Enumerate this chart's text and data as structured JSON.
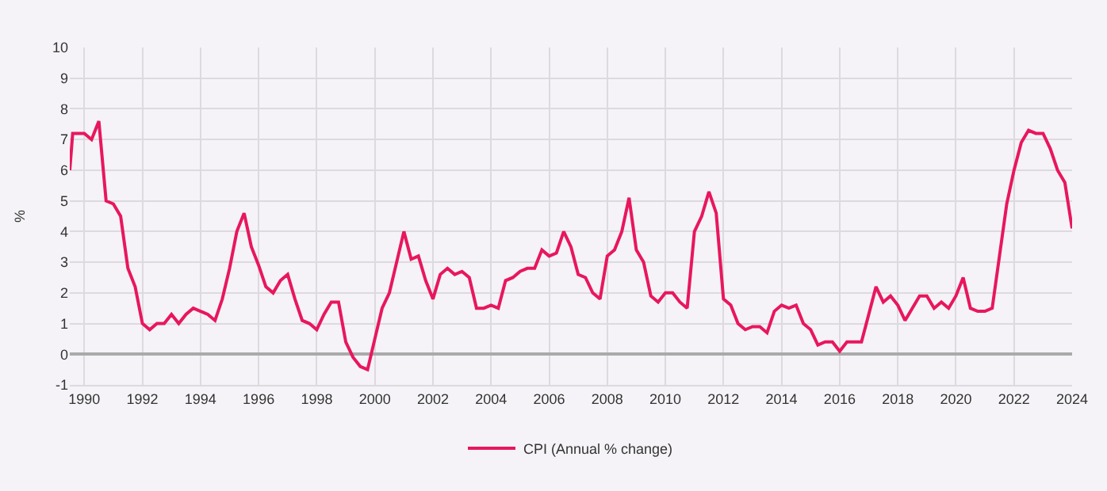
{
  "chart_data": {
    "type": "line",
    "ylabel": "%",
    "x": [
      1989.5,
      1989.6,
      1990.0,
      1990.25,
      1990.5,
      1990.75,
      1991.0,
      1991.25,
      1991.5,
      1991.75,
      1992.0,
      1992.25,
      1992.5,
      1992.75,
      1993.0,
      1993.25,
      1993.5,
      1993.75,
      1994.0,
      1994.25,
      1994.5,
      1994.75,
      1995.0,
      1995.25,
      1995.5,
      1995.75,
      1996.0,
      1996.25,
      1996.5,
      1996.75,
      1997.0,
      1997.25,
      1997.5,
      1997.75,
      1998.0,
      1998.25,
      1998.5,
      1998.75,
      1999.0,
      1999.25,
      1999.5,
      1999.75,
      2000.0,
      2000.25,
      2000.5,
      2000.75,
      2001.0,
      2001.25,
      2001.5,
      2001.75,
      2002.0,
      2002.25,
      2002.5,
      2002.75,
      2003.0,
      2003.25,
      2003.5,
      2003.75,
      2004.0,
      2004.25,
      2004.5,
      2004.75,
      2005.0,
      2005.25,
      2005.5,
      2005.75,
      2006.0,
      2006.25,
      2006.5,
      2006.75,
      2007.0,
      2007.25,
      2007.5,
      2007.75,
      2008.0,
      2008.25,
      2008.5,
      2008.75,
      2009.0,
      2009.25,
      2009.5,
      2009.75,
      2010.0,
      2010.25,
      2010.5,
      2010.75,
      2011.0,
      2011.25,
      2011.5,
      2011.75,
      2012.0,
      2012.25,
      2012.5,
      2012.75,
      2013.0,
      2013.25,
      2013.5,
      2013.75,
      2014.0,
      2014.25,
      2014.5,
      2014.75,
      2015.0,
      2015.25,
      2015.5,
      2015.75,
      2016.0,
      2016.25,
      2016.5,
      2016.75,
      2017.0,
      2017.25,
      2017.5,
      2017.75,
      2018.0,
      2018.25,
      2018.5,
      2018.75,
      2019.0,
      2019.25,
      2019.5,
      2019.75,
      2020.0,
      2020.25,
      2020.5,
      2020.75,
      2021.0,
      2021.25,
      2021.5,
      2021.75,
      2022.0,
      2022.25,
      2022.5,
      2022.75,
      2023.0,
      2023.25,
      2023.5,
      2023.75,
      2024.0
    ],
    "series": [
      {
        "name": "CPI (Annual % change)",
        "color": "#e8175d",
        "values": [
          6.0,
          7.2,
          7.2,
          7.0,
          7.6,
          5.0,
          4.9,
          4.5,
          2.8,
          2.2,
          1.0,
          0.8,
          1.0,
          1.0,
          1.3,
          1.0,
          1.3,
          1.5,
          1.4,
          1.3,
          1.1,
          1.8,
          2.8,
          4.0,
          4.6,
          3.5,
          2.9,
          2.2,
          2.0,
          2.4,
          2.6,
          1.8,
          1.1,
          1.0,
          0.8,
          1.3,
          1.7,
          1.7,
          0.4,
          -0.1,
          -0.4,
          -0.5,
          0.5,
          1.5,
          2.0,
          3.0,
          4.0,
          3.1,
          3.2,
          2.4,
          1.8,
          2.6,
          2.8,
          2.6,
          2.7,
          2.5,
          1.5,
          1.5,
          1.6,
          1.5,
          2.4,
          2.5,
          2.7,
          2.8,
          2.8,
          3.4,
          3.2,
          3.3,
          4.0,
          3.5,
          2.6,
          2.5,
          2.0,
          1.8,
          3.2,
          3.4,
          4.0,
          5.1,
          3.4,
          3.0,
          1.9,
          1.7,
          2.0,
          2.0,
          1.7,
          1.5,
          4.0,
          4.5,
          5.3,
          4.6,
          1.8,
          1.6,
          1.0,
          0.8,
          0.9,
          0.9,
          0.7,
          1.4,
          1.6,
          1.5,
          1.6,
          1.0,
          0.8,
          0.3,
          0.4,
          0.4,
          0.1,
          0.4,
          0.4,
          0.4,
          1.3,
          2.2,
          1.7,
          1.9,
          1.6,
          1.1,
          1.5,
          1.9,
          1.9,
          1.5,
          1.7,
          1.5,
          1.9,
          2.5,
          1.5,
          1.4,
          1.4,
          1.5,
          3.2,
          4.9,
          6.0,
          6.9,
          7.3,
          7.2,
          7.2,
          6.7,
          6.0,
          5.6,
          4.1
        ]
      }
    ],
    "xlim": [
      1989.5,
      2024.0
    ],
    "xticks": [
      1990,
      1992,
      1994,
      1996,
      1998,
      2000,
      2002,
      2004,
      2006,
      2008,
      2010,
      2012,
      2014,
      2016,
      2018,
      2020,
      2022,
      2024
    ],
    "ylim": [
      -1,
      10
    ],
    "yticks": [
      -1,
      0,
      1,
      2,
      3,
      4,
      5,
      6,
      7,
      8,
      9,
      10
    ],
    "grid": true,
    "legend": "bottom",
    "marker": "none",
    "line_style": "solid"
  }
}
